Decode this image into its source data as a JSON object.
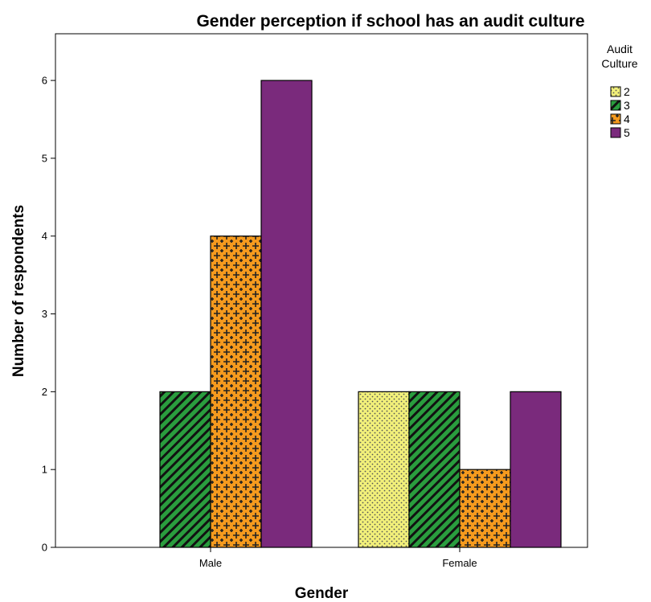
{
  "chart_data": {
    "type": "bar",
    "title": "Gender perception if school has an audit culture",
    "xlabel": "Gender",
    "ylabel": "Number of respondents",
    "categories": [
      "Male",
      "Female"
    ],
    "ylim": [
      0,
      6
    ],
    "yticks": [
      0,
      1,
      2,
      3,
      4,
      5,
      6
    ],
    "legend": {
      "title_line1": "Audit",
      "title_line2": "Culture",
      "placement": "right"
    },
    "series": [
      {
        "name": "2",
        "values": [
          0,
          2
        ],
        "color": "#f2f07a",
        "pattern": "dots"
      },
      {
        "name": "3",
        "values": [
          2,
          2
        ],
        "color": "#2a9d3e",
        "pattern": "diagonal"
      },
      {
        "name": "4",
        "values": [
          4,
          1
        ],
        "color": "#f59a1e",
        "pattern": "crosses"
      },
      {
        "name": "5",
        "values": [
          6,
          2
        ],
        "color": "#7a2a7c",
        "pattern": "solid"
      }
    ]
  }
}
